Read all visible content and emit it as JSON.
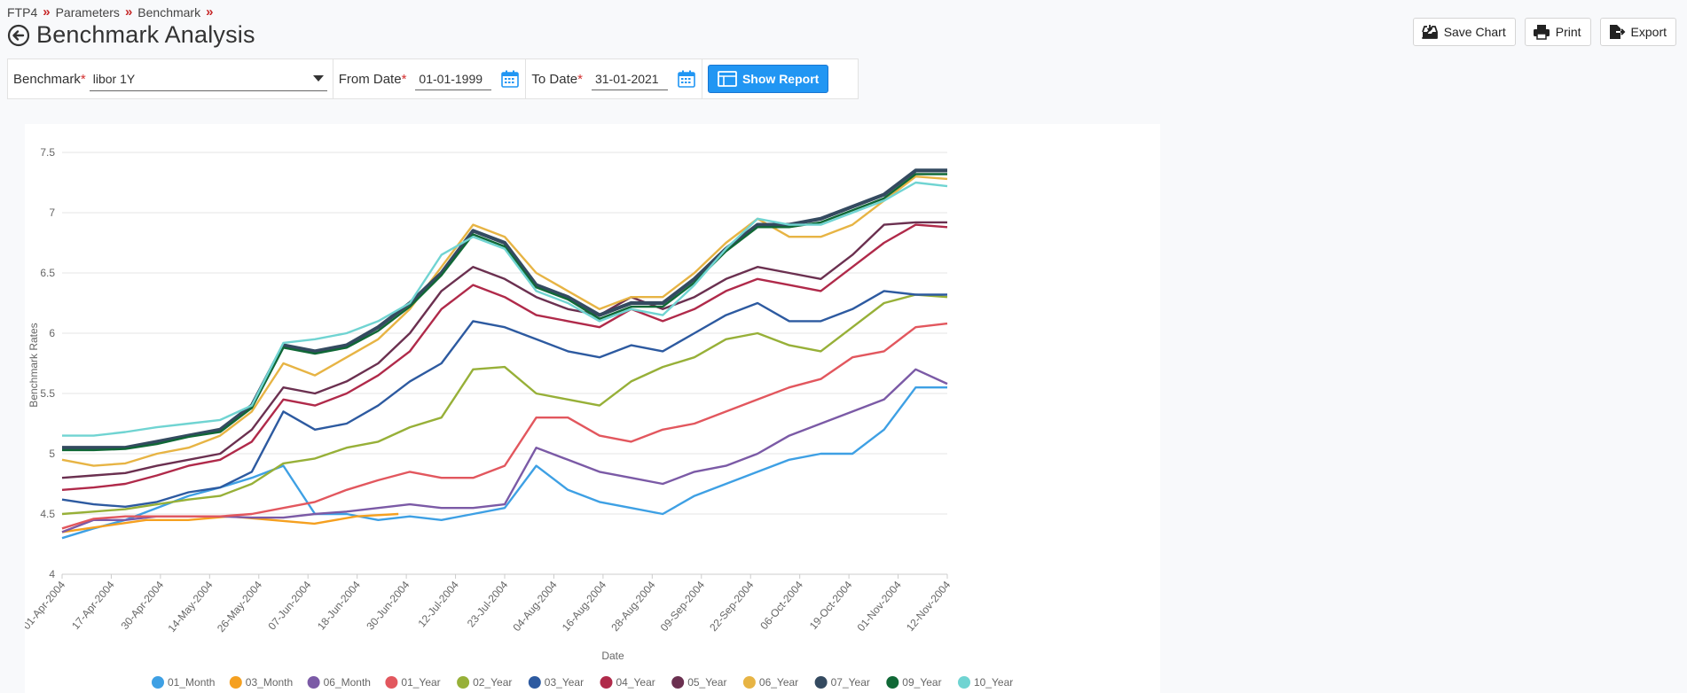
{
  "breadcrumb": [
    "FTP4",
    "Parameters",
    "Benchmark"
  ],
  "page_title": "Benchmark Analysis",
  "actions": {
    "save_chart": "Save Chart",
    "print": "Print",
    "export": "Export"
  },
  "filters": {
    "benchmark_label": "Benchmark",
    "benchmark_value": "libor 1Y",
    "from_label": "From Date",
    "from_value": "01-01-1999",
    "to_label": "To Date",
    "to_value": "31-01-2021",
    "show_report": "Show Report",
    "required_mark": "*"
  },
  "chart_data": {
    "type": "line",
    "xlabel": "Date",
    "ylabel": "Benchmark Rates",
    "ylim": [
      4,
      7.5
    ],
    "yticks": [
      "4",
      "4.5",
      "5",
      "5.5",
      "6",
      "6.5",
      "7",
      "7.5"
    ],
    "x_tick_labels": [
      "01-Apr-2004",
      "17-Apr-2004",
      "30-Apr-2004",
      "14-May-2004",
      "26-May-2004",
      "07-Jun-2004",
      "18-Jun-2004",
      "30-Jun-2004",
      "12-Jul-2004",
      "23-Jul-2004",
      "04-Aug-2004",
      "16-Aug-2004",
      "28-Aug-2004",
      "09-Sep-2004",
      "22-Sep-2004",
      "06-Oct-2004",
      "19-Oct-2004",
      "01-Nov-2004",
      "12-Nov-2004"
    ],
    "legend_position": "bottom",
    "grid": true,
    "series": [
      {
        "name": "01_Month",
        "color": "#3ea0e4",
        "values": [
          4.3,
          4.38,
          4.45,
          4.55,
          4.65,
          4.72,
          4.8,
          4.9,
          4.5,
          4.5,
          4.45,
          4.48,
          4.45,
          4.5,
          4.55,
          4.9,
          4.7,
          4.6,
          4.55,
          4.5,
          4.65,
          4.75,
          4.85,
          4.95,
          5.0,
          5.0,
          5.2,
          5.55,
          5.55
        ]
      },
      {
        "name": "03_Month",
        "color": "#f5a020",
        "values": [
          4.35,
          4.4,
          4.45,
          4.45,
          4.48,
          4.45,
          4.42,
          4.48,
          4.5
        ]
      },
      {
        "name": "06_Month",
        "color": "#7b5aa6",
        "values": [
          4.35,
          4.45,
          4.45,
          4.48,
          4.48,
          4.48,
          4.47,
          4.47,
          4.5,
          4.52,
          4.55,
          4.58,
          4.55,
          4.55,
          4.58,
          5.05,
          4.95,
          4.85,
          4.8,
          4.75,
          4.85,
          4.9,
          5.0,
          5.15,
          5.25,
          5.35,
          5.45,
          5.7,
          5.58
        ]
      },
      {
        "name": "01_Year",
        "color": "#e2575e",
        "values": [
          4.38,
          4.46,
          4.48,
          4.48,
          4.48,
          4.48,
          4.5,
          4.55,
          4.6,
          4.7,
          4.78,
          4.85,
          4.8,
          4.8,
          4.9,
          5.3,
          5.3,
          5.15,
          5.1,
          5.2,
          5.25,
          5.35,
          5.45,
          5.55,
          5.62,
          5.8,
          5.85,
          6.05,
          6.08
        ]
      },
      {
        "name": "02_Year",
        "color": "#97b038",
        "values": [
          4.5,
          4.52,
          4.54,
          4.58,
          4.62,
          4.65,
          4.75,
          4.92,
          4.96,
          5.05,
          5.1,
          5.22,
          5.3,
          5.7,
          5.72,
          5.5,
          5.45,
          5.4,
          5.6,
          5.72,
          5.8,
          5.95,
          6.0,
          5.9,
          5.85,
          6.05,
          6.25,
          6.32,
          6.3
        ]
      },
      {
        "name": "03_Year",
        "color": "#2d5aa0",
        "values": [
          4.62,
          4.58,
          4.56,
          4.6,
          4.68,
          4.72,
          4.85,
          5.35,
          5.2,
          5.25,
          5.4,
          5.6,
          5.75,
          6.1,
          6.05,
          5.95,
          5.85,
          5.8,
          5.9,
          5.85,
          6.0,
          6.15,
          6.25,
          6.1,
          6.1,
          6.2,
          6.35,
          6.32,
          6.32
        ]
      },
      {
        "name": "04_Year",
        "color": "#b02a4a",
        "values": [
          4.7,
          4.72,
          4.75,
          4.82,
          4.9,
          4.95,
          5.1,
          5.45,
          5.4,
          5.5,
          5.65,
          5.85,
          6.2,
          6.4,
          6.3,
          6.15,
          6.1,
          6.05,
          6.2,
          6.1,
          6.2,
          6.35,
          6.45,
          6.4,
          6.35,
          6.55,
          6.75,
          6.9,
          6.88
        ]
      },
      {
        "name": "05_Year",
        "color": "#6b3050",
        "values": [
          4.8,
          4.82,
          4.84,
          4.9,
          4.95,
          5.0,
          5.2,
          5.55,
          5.5,
          5.6,
          5.75,
          6.0,
          6.35,
          6.55,
          6.45,
          6.3,
          6.2,
          6.15,
          6.3,
          6.2,
          6.3,
          6.45,
          6.55,
          6.5,
          6.45,
          6.65,
          6.9,
          6.92,
          6.92
        ]
      },
      {
        "name": "06_Year",
        "color": "#e7b444",
        "values": [
          4.95,
          4.9,
          4.92,
          5.0,
          5.05,
          5.15,
          5.35,
          5.75,
          5.65,
          5.8,
          5.95,
          6.2,
          6.55,
          6.9,
          6.8,
          6.5,
          6.35,
          6.2,
          6.3,
          6.3,
          6.5,
          6.75,
          6.95,
          6.8,
          6.8,
          6.9,
          7.1,
          7.3,
          7.28
        ]
      },
      {
        "name": "07_Year",
        "color": "#344a60",
        "values": [
          5.05,
          5.05,
          5.05,
          5.1,
          5.15,
          5.2,
          5.4,
          5.9,
          5.85,
          5.9,
          6.05,
          6.25,
          6.5,
          6.85,
          6.75,
          6.4,
          6.3,
          6.15,
          6.25,
          6.25,
          6.45,
          6.7,
          6.9,
          6.9,
          6.95,
          7.05,
          7.15,
          7.35,
          7.35
        ]
      },
      {
        "name": "09_Year",
        "color": "#106836",
        "values": [
          5.03,
          5.03,
          5.04,
          5.08,
          5.14,
          5.18,
          5.38,
          5.88,
          5.83,
          5.88,
          6.02,
          6.22,
          6.48,
          6.82,
          6.72,
          6.38,
          6.28,
          6.12,
          6.22,
          6.22,
          6.42,
          6.68,
          6.88,
          6.88,
          6.92,
          7.02,
          7.12,
          7.32,
          7.32
        ]
      },
      {
        "name": "10_Year",
        "color": "#70d4d2",
        "values": [
          5.15,
          5.15,
          5.18,
          5.22,
          5.25,
          5.28,
          5.4,
          5.92,
          5.95,
          6.0,
          6.1,
          6.25,
          6.65,
          6.8,
          6.7,
          6.35,
          6.25,
          6.1,
          6.2,
          6.15,
          6.4,
          6.7,
          6.95,
          6.9,
          6.9,
          7.0,
          7.1,
          7.25,
          7.22
        ]
      }
    ]
  }
}
